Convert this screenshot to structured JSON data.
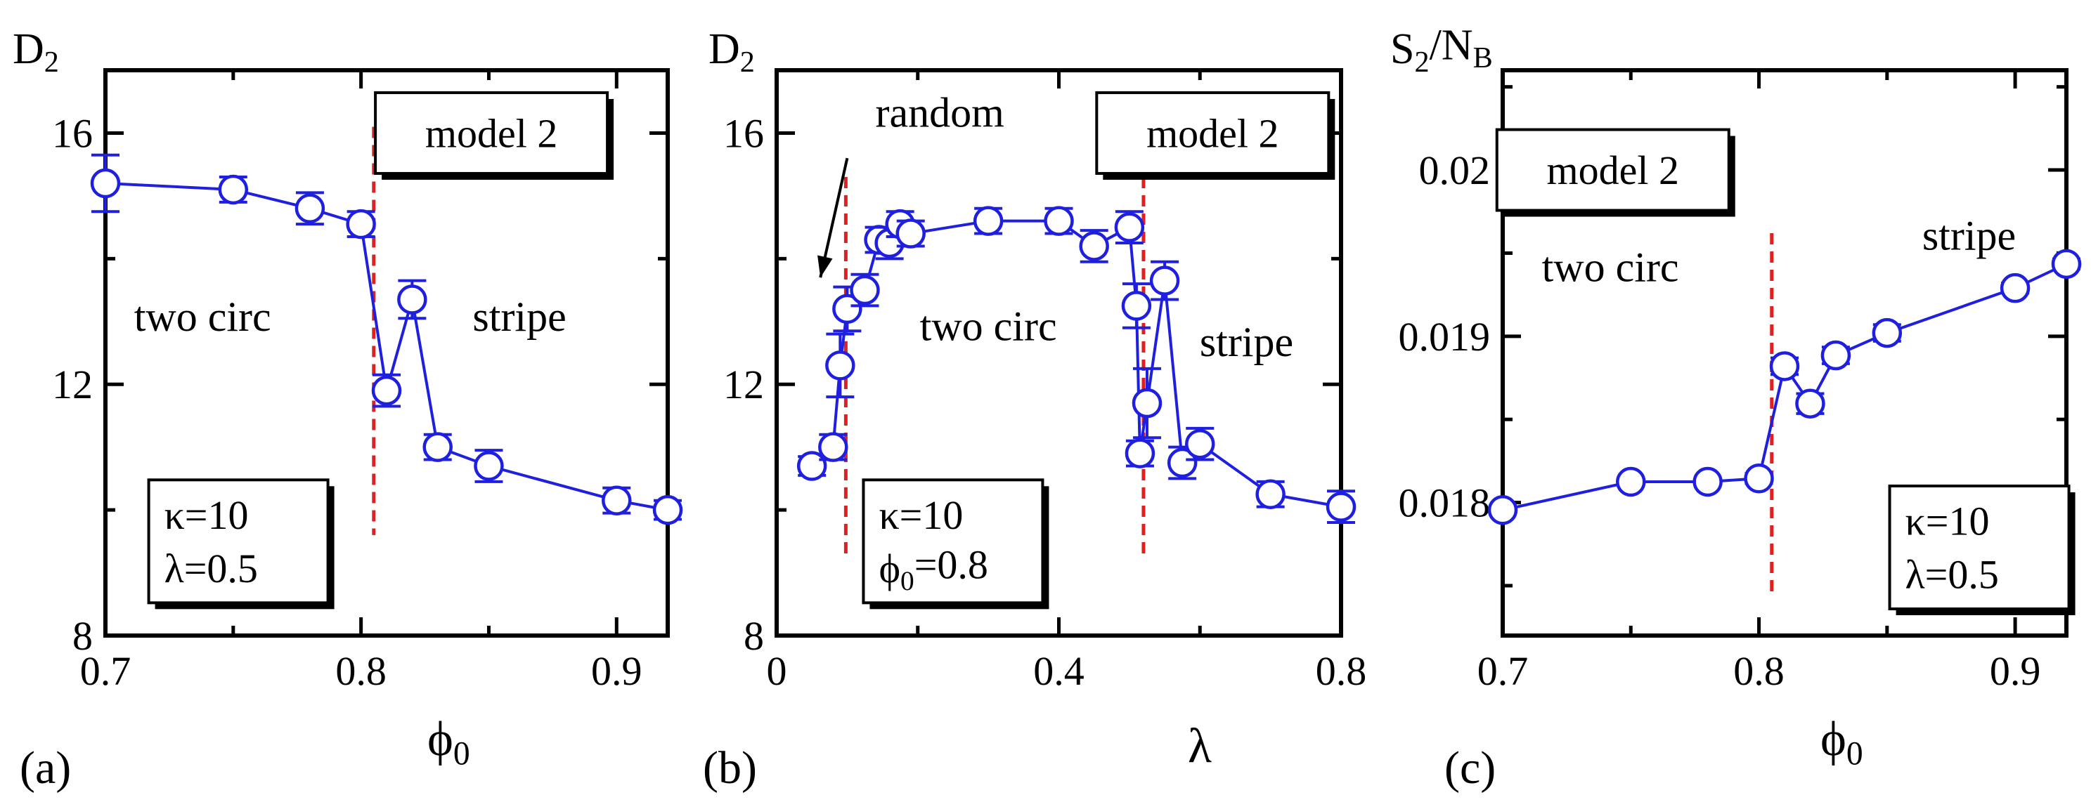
{
  "chart_data": [
    {
      "type": "line",
      "panel_label": "(a)",
      "ylabel_main": "D",
      "ylabel_sub": "2",
      "xlabel_main": "ϕ",
      "xlabel_sub": "0",
      "xlim": [
        0.7,
        0.92
      ],
      "ylim": [
        8,
        17
      ],
      "xticks": [
        {
          "value": 0.7,
          "label": "0.7"
        },
        {
          "value": 0.8,
          "label": "0.8"
        },
        {
          "value": 0.9,
          "label": "0.9"
        }
      ],
      "yticks": [
        {
          "value": 8,
          "label": "8"
        },
        {
          "value": 12,
          "label": "12"
        },
        {
          "value": 16,
          "label": "16"
        }
      ],
      "series": [
        {
          "color": "#1f1fe0",
          "x": [
            0.7,
            0.75,
            0.78,
            0.8,
            0.81,
            0.82,
            0.83,
            0.85,
            0.9,
            0.92
          ],
          "y": [
            15.2,
            15.1,
            14.8,
            14.55,
            11.9,
            13.35,
            11.0,
            10.7,
            10.15,
            10.0
          ],
          "err": [
            0.45,
            0.2,
            0.25,
            0.2,
            0.25,
            0.3,
            0.2,
            0.25,
            0.2,
            0.15
          ]
        }
      ],
      "vlines": [
        {
          "x": 0.805,
          "y0": 9.6,
          "y1": 16.1,
          "color": "#e02020"
        }
      ],
      "region_labels": [
        {
          "text": "two circ",
          "x": 0.738,
          "y": 12.85
        },
        {
          "text": "stripe",
          "x": 0.862,
          "y": 12.85
        }
      ],
      "info_box": {
        "text": "model 2",
        "x": 0.851,
        "y": 16.0
      },
      "param_box": {
        "line1_main": "κ=10",
        "line1_sub": "",
        "line2_main": "λ=0.5",
        "line2_sub": "",
        "x": 0.752,
        "y": 9.5
      }
    },
    {
      "type": "line",
      "panel_label": "(b)",
      "ylabel_main": "D",
      "ylabel_sub": "2",
      "xlabel_main": "λ",
      "xlabel_sub": "",
      "xlim": [
        0,
        0.8
      ],
      "ylim": [
        8,
        17
      ],
      "xticks": [
        {
          "value": 0,
          "label": "0"
        },
        {
          "value": 0.4,
          "label": "0.4"
        },
        {
          "value": 0.8,
          "label": "0.8"
        }
      ],
      "yticks": [
        {
          "value": 8,
          "label": "8"
        },
        {
          "value": 12,
          "label": "12"
        },
        {
          "value": 16,
          "label": "16"
        }
      ],
      "series": [
        {
          "color": "#1f1fe0",
          "x": [
            0.05,
            0.08,
            0.09,
            0.1,
            0.125,
            0.145,
            0.16,
            0.175,
            0.19,
            0.3,
            0.4,
            0.45,
            0.5,
            0.51,
            0.515,
            0.525,
            0.55,
            0.575,
            0.6,
            0.7,
            0.8
          ],
          "y": [
            10.7,
            11.0,
            12.3,
            13.2,
            13.5,
            14.3,
            14.25,
            14.55,
            14.4,
            14.6,
            14.6,
            14.2,
            14.5,
            13.25,
            10.9,
            11.7,
            13.65,
            10.75,
            11.05,
            10.25,
            10.05
          ],
          "err": [
            0.15,
            0.2,
            0.5,
            0.35,
            0.25,
            0.2,
            0.25,
            0.2,
            0.2,
            0.2,
            0.2,
            0.25,
            0.25,
            0.35,
            0.2,
            0.55,
            0.3,
            0.25,
            0.25,
            0.2,
            0.25
          ]
        }
      ],
      "vlines": [
        {
          "x": 0.098,
          "y0": 9.2,
          "y1": 15.3,
          "color": "#e02020"
        },
        {
          "x": 0.52,
          "y0": 9.2,
          "y1": 15.3,
          "color": "#e02020"
        }
      ],
      "region_labels": [
        {
          "text": "two circ",
          "x": 0.3,
          "y": 12.7
        },
        {
          "text": "stripe",
          "x": 0.666,
          "y": 12.45
        }
      ],
      "arrow_label": {
        "text": "random",
        "tx": 0.14,
        "ty": 16.1,
        "x0": 0.1,
        "y0": 15.6,
        "x1": 0.062,
        "y1": 13.7
      },
      "info_box": {
        "text": "model 2",
        "x": 0.618,
        "y": 16.0
      },
      "param_box": {
        "line1_main": "κ=10",
        "line1_sub": "",
        "line2_main": "ϕ",
        "line2_sub": "0",
        "line2_tail": "=0.8",
        "x": 0.25,
        "y": 9.5
      }
    },
    {
      "type": "line",
      "panel_label": "(c)",
      "ylabel_main": "S",
      "ylabel_sub": "2",
      "ylabel_mid": "/N",
      "ylabel_sub2": "B",
      "xlabel_main": "ϕ",
      "xlabel_sub": "0",
      "xlim": [
        0.7,
        0.92
      ],
      "ylim": [
        0.0172,
        0.0206
      ],
      "xticks": [
        {
          "value": 0.7,
          "label": "0.7"
        },
        {
          "value": 0.8,
          "label": "0.8"
        },
        {
          "value": 0.9,
          "label": "0.9"
        }
      ],
      "yticks": [
        {
          "value": 0.018,
          "label": "0.018"
        },
        {
          "value": 0.019,
          "label": "0.019"
        },
        {
          "value": 0.02,
          "label": "0.02"
        }
      ],
      "series": [
        {
          "color": "#1f1fe0",
          "x": [
            0.7,
            0.75,
            0.78,
            0.8,
            0.81,
            0.82,
            0.83,
            0.85,
            0.9,
            0.92
          ],
          "y": [
            0.017955,
            0.018125,
            0.018125,
            0.018145,
            0.01882,
            0.018595,
            0.018885,
            0.01902,
            0.01929,
            0.019435
          ],
          "err": [
            0.0,
            0.0,
            0.0,
            3e-05,
            5e-05,
            6e-05,
            5e-05,
            5e-05,
            3e-05,
            3e-05
          ]
        }
      ],
      "vlines": [
        {
          "x": 0.805,
          "y0": 0.01744,
          "y1": 0.01962,
          "color": "#e02020"
        }
      ],
      "region_labels": [
        {
          "text": "two circ",
          "x": 0.742,
          "y": 0.01933
        },
        {
          "text": "stripe",
          "x": 0.882,
          "y": 0.01952
        }
      ],
      "info_box": {
        "text": "model 2",
        "x": 0.743,
        "y": 0.02
      },
      "param_box": {
        "line1_main": "κ=10",
        "line1_sub": "",
        "line2_main": "λ=0.5",
        "line2_sub": "",
        "x": 0.886,
        "y": 0.01773
      }
    }
  ]
}
